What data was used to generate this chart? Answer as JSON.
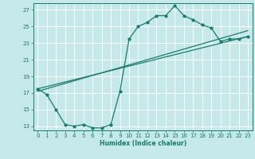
{
  "xlabel": "Humidex (Indice chaleur)",
  "ylabel": "",
  "bg_color": "#c5e8e8",
  "grid_color": "#ffffff",
  "line_color": "#1a7a6e",
  "xlim": [
    -0.5,
    23.5
  ],
  "ylim": [
    12.5,
    27.8
  ],
  "xticks": [
    0,
    1,
    2,
    3,
    4,
    5,
    6,
    7,
    8,
    9,
    10,
    11,
    12,
    13,
    14,
    15,
    16,
    17,
    18,
    19,
    20,
    21,
    22,
    23
  ],
  "yticks": [
    13,
    15,
    17,
    19,
    21,
    23,
    25,
    27
  ],
  "curve1_x": [
    0,
    1,
    2,
    3,
    4,
    5,
    6,
    7,
    8,
    9,
    10,
    11,
    12,
    13,
    14,
    15,
    16,
    17,
    18,
    19,
    20,
    21,
    22,
    23
  ],
  "curve1_y": [
    17.5,
    16.8,
    15.0,
    13.2,
    13.0,
    13.2,
    12.8,
    12.8,
    13.2,
    17.2,
    23.5,
    25.0,
    25.5,
    26.3,
    26.3,
    27.5,
    26.3,
    25.8,
    25.2,
    24.8,
    23.2,
    23.5,
    23.5,
    23.8
  ],
  "line2_x": [
    0,
    23
  ],
  "line2_y": [
    17.5,
    23.8
  ],
  "line3_x": [
    0,
    23
  ],
  "line3_y": [
    17.2,
    24.5
  ],
  "marker_style": "o",
  "marker_size": 2.0,
  "linewidth": 0.9,
  "tick_fontsize": 5.0,
  "xlabel_fontsize": 5.5
}
